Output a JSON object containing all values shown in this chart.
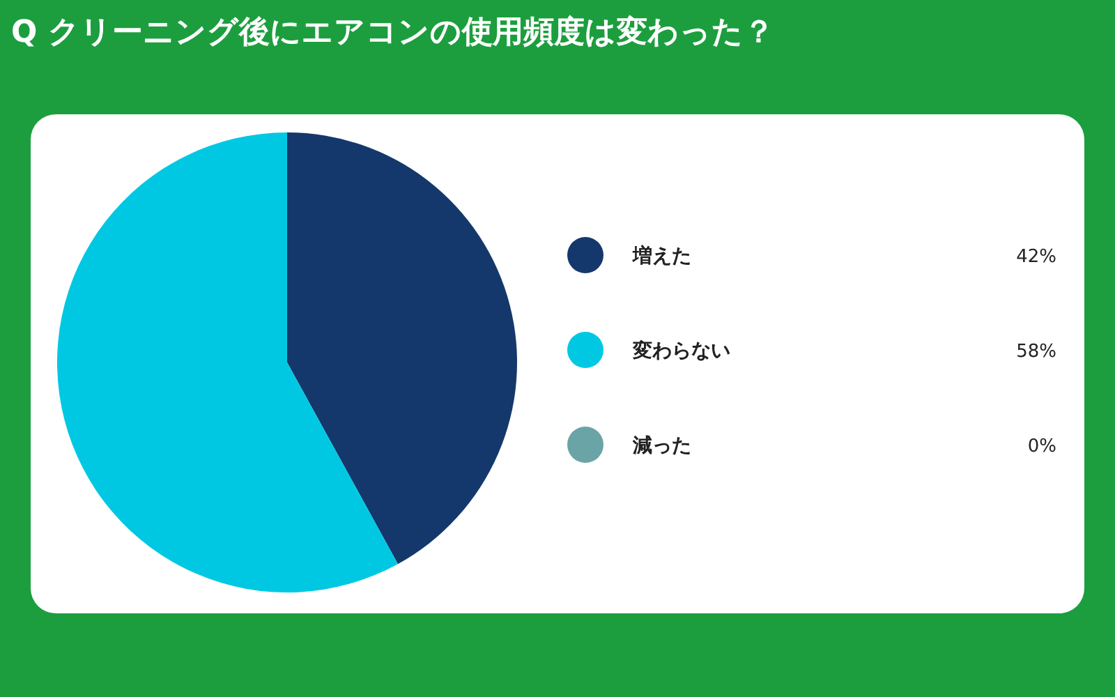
{
  "chart_data": {
    "type": "pie",
    "title": "Q クリーニング後にエアコンの使用頻度は変わった？",
    "categories": [
      "増えた",
      "変わらない",
      "減った"
    ],
    "values": [
      42,
      58,
      0
    ],
    "colors": [
      "#14386b",
      "#00c8e3",
      "#6aa4a6"
    ],
    "value_labels": [
      "42%",
      "58%",
      "0%"
    ],
    "legend": "right"
  }
}
